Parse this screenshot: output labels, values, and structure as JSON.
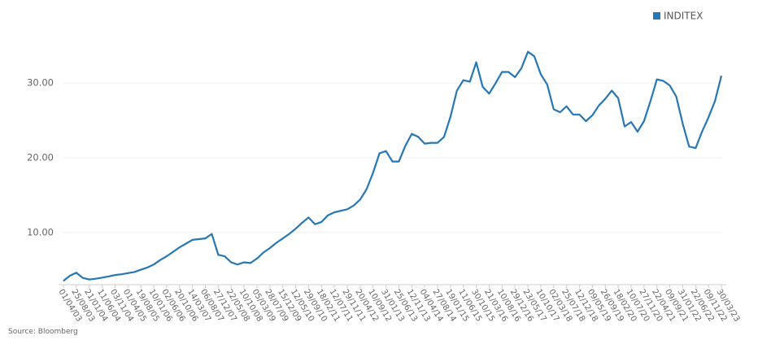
{
  "chart_data": {
    "type": "line",
    "source": "Source: Bloomberg",
    "categories": [
      "01/04/03",
      null,
      "25/08/03",
      null,
      "21/01/04",
      null,
      "11/06/04",
      null,
      "03/11/04",
      null,
      "01/04/05",
      null,
      "19/08/05",
      null,
      "10/01/06",
      null,
      "02/06/06",
      null,
      "20/10/06",
      null,
      "14/03/07",
      null,
      "06/08/07",
      null,
      "27/12/07",
      null,
      "22/05/08",
      null,
      "10/10/08",
      null,
      "05/03/09",
      null,
      "28/07/09",
      null,
      "15/12/09",
      null,
      "12/05/10",
      null,
      "29/09/10",
      null,
      "18/02/11",
      null,
      "12/07/11",
      null,
      "29/11/11",
      null,
      "20/04/12",
      null,
      "10/09/12",
      null,
      "31/01/13",
      null,
      "25/06/13",
      null,
      "12/11/13",
      null,
      "04/04/14",
      null,
      "27/08/14",
      null,
      "19/01/15",
      null,
      "11/06/15",
      null,
      "30/10/15",
      null,
      "21/03/16",
      null,
      "10/08/16",
      null,
      "29/12/16",
      null,
      "23/05/17",
      null,
      "10/10/17",
      null,
      "02/03/18",
      null,
      "25/07/18",
      null,
      "12/12/18",
      null,
      "09/05/19",
      null,
      "26/09/19",
      null,
      "18/02/20",
      null,
      "10/07/20",
      null,
      "27/11/20",
      null,
      "22/04/21",
      null,
      "09/09/21",
      null,
      "31/01/22",
      null,
      "22/06/22",
      null,
      "09/11/22",
      null,
      "30/03/23"
    ],
    "series": [
      {
        "name": "INDITEX",
        "color": "#2677b5",
        "values": [
          3.5,
          4.2,
          4.6,
          3.9,
          3.7,
          3.8,
          3.95,
          4.1,
          4.3,
          4.4,
          4.55,
          4.7,
          5.0,
          5.3,
          5.7,
          6.3,
          6.8,
          7.4,
          8.0,
          8.5,
          9.0,
          9.1,
          9.2,
          9.8,
          7.0,
          6.8,
          6.0,
          5.7,
          6.0,
          5.9,
          6.5,
          7.3,
          7.9,
          8.6,
          9.2,
          9.8,
          10.5,
          11.3,
          12.0,
          11.1,
          11.4,
          12.3,
          12.7,
          12.9,
          13.1,
          13.6,
          14.4,
          15.8,
          18.0,
          20.6,
          20.9,
          19.5,
          19.5,
          21.6,
          23.2,
          22.8,
          21.9,
          22.0,
          22.0,
          22.8,
          25.5,
          29.0,
          30.4,
          30.2,
          32.8,
          29.5,
          28.6,
          30.0,
          31.5,
          31.5,
          30.8,
          32.0,
          34.2,
          33.6,
          31.2,
          29.8,
          26.5,
          26.1,
          26.9,
          25.8,
          25.8,
          24.9,
          25.7,
          27.0,
          27.9,
          29.0,
          28.0,
          24.2,
          24.8,
          23.5,
          24.9,
          27.6,
          30.5,
          30.3,
          29.7,
          28.2,
          24.6,
          21.5,
          21.3,
          23.5,
          25.4,
          27.6,
          31.0
        ]
      }
    ],
    "ylim": [
      3,
      37
    ],
    "yticks": [
      {
        "value": 10,
        "label": "10.00"
      },
      {
        "value": 20,
        "label": "20.00"
      },
      {
        "value": 30,
        "label": "30.00"
      }
    ],
    "grid": true,
    "legend": "top-right"
  }
}
